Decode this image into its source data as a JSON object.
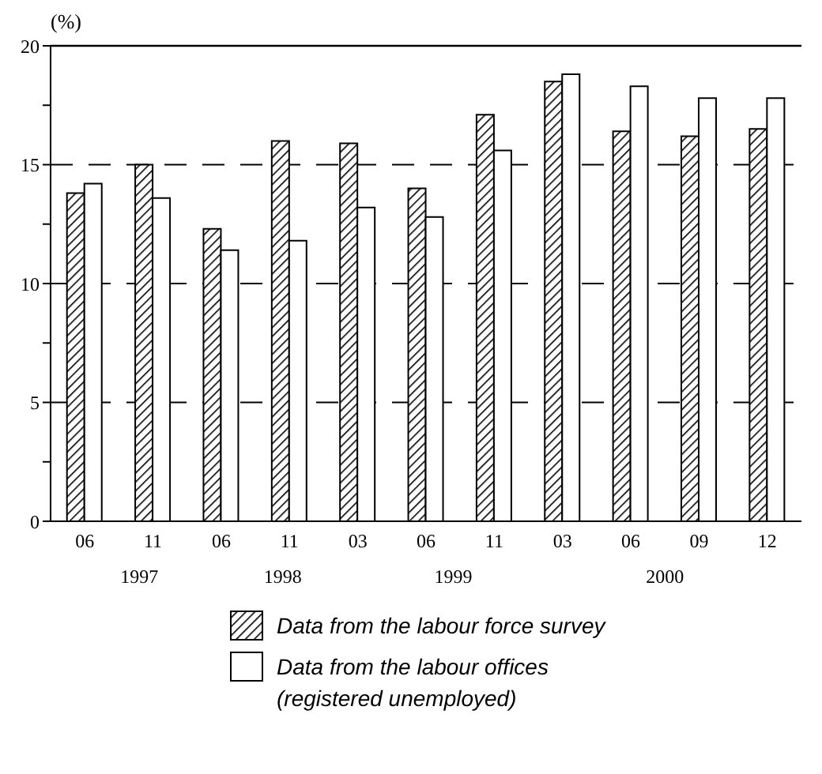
{
  "chart_data": {
    "type": "bar",
    "ylabel": "(%)",
    "categories": [
      "06",
      "11",
      "06",
      "11",
      "03",
      "06",
      "11",
      "03",
      "06",
      "09",
      "12"
    ],
    "series": [
      {
        "name": "Data from the labour force survey",
        "color": "#000000",
        "values": [
          13.8,
          15.0,
          12.3,
          16.0,
          15.9,
          14.0,
          17.1,
          18.5,
          16.4,
          16.2,
          16.5
        ]
      },
      {
        "name": "Data from the labour offices (registered unemployed)",
        "color": "#ffffff",
        "values": [
          14.2,
          13.6,
          11.4,
          11.8,
          13.2,
          12.8,
          15.6,
          18.8,
          18.3,
          17.8,
          17.8
        ]
      }
    ],
    "ylim": [
      0,
      20
    ],
    "yticks": [
      0,
      {
        "value": 2.5,
        "label": null
      },
      5,
      {
        "value": 7.5,
        "label": null
      },
      10,
      {
        "value": 12.5,
        "label": null
      },
      15,
      {
        "value": 17.5,
        "label": null
      },
      20
    ],
    "grid": "y",
    "legend": "bottom",
    "annotations": [
      "1997",
      "1998",
      "1999",
      "2000"
    ]
  }
}
